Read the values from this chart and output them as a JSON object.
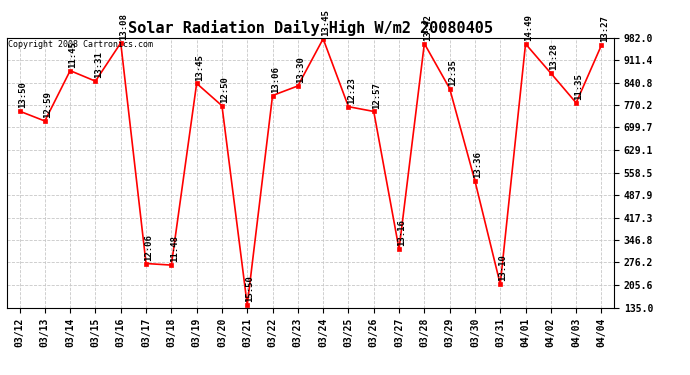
{
  "title": "Solar Radiation Daily High W/m2 20080405",
  "copyright": "Copyright 2008 Cartronics.com",
  "dates": [
    "03/12",
    "03/13",
    "03/14",
    "03/15",
    "03/16",
    "03/17",
    "03/18",
    "03/19",
    "03/20",
    "03/21",
    "03/22",
    "03/23",
    "03/24",
    "03/25",
    "03/26",
    "03/27",
    "03/28",
    "03/29",
    "03/30",
    "03/31",
    "04/01",
    "04/02",
    "04/03",
    "04/04"
  ],
  "values": [
    751.0,
    720.0,
    878.0,
    845.0,
    965.0,
    273.0,
    268.0,
    838.0,
    768.0,
    143.0,
    800.0,
    830.0,
    978.0,
    765.0,
    750.0,
    318.0,
    963.0,
    822.0,
    532.0,
    208.0,
    962.0,
    870.0,
    777.0,
    958.0
  ],
  "time_labels": [
    "13:50",
    "12:59",
    "11:45",
    "13:31",
    "13:08",
    "12:06",
    "11:48",
    "13:45",
    "12:50",
    "15:50",
    "13:06",
    "13:30",
    "13:45",
    "12:23",
    "12:57",
    "13:16",
    "13:42",
    "12:35",
    "13:36",
    "13:10",
    "14:49",
    "13:28",
    "11:35",
    "13:27"
  ],
  "ylim": [
    135.0,
    982.0
  ],
  "yticks": [
    135.0,
    205.6,
    276.2,
    346.8,
    417.3,
    487.9,
    558.5,
    629.1,
    699.7,
    770.2,
    840.8,
    911.4,
    982.0
  ],
  "line_color": "#ff0000",
  "marker_color": "#ff0000",
  "bg_color": "#ffffff",
  "grid_color": "#c8c8c8",
  "title_fontsize": 11,
  "label_fontsize": 6.5,
  "tick_fontsize": 7,
  "copyright_fontsize": 6
}
